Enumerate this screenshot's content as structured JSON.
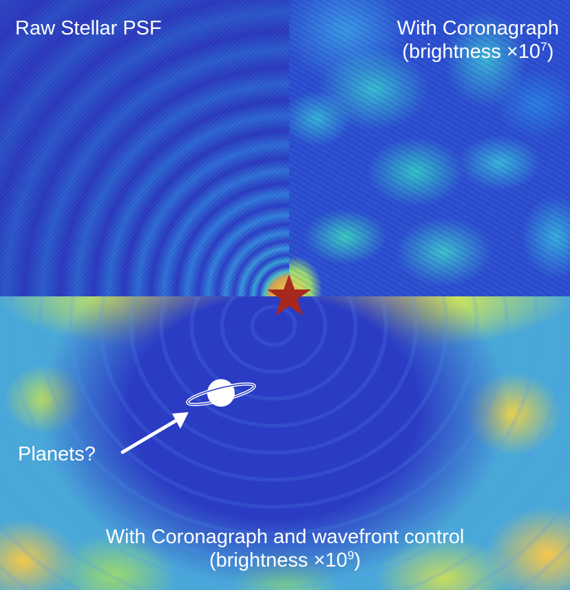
{
  "panels": {
    "raw": {
      "title": "Raw Stellar PSF"
    },
    "coronagraph": {
      "title": "With Coronagraph",
      "brightness_prefix": "(brightness ×10",
      "brightness_exponent": "7",
      "brightness_suffix": ")"
    },
    "wavefront": {
      "title": "With Coronagraph and wavefront control",
      "brightness_prefix": "(brightness ×10",
      "brightness_exponent": "9",
      "brightness_suffix": ")"
    }
  },
  "annotations": {
    "planets_label": "Planets?",
    "icons": [
      "star-icon",
      "planet-icon",
      "arrow-icon"
    ]
  },
  "colors": {
    "star": "#a8281e",
    "text": "#ffffff",
    "background_blue": "#2b3cc4",
    "core_yellow": "#fff24a"
  }
}
